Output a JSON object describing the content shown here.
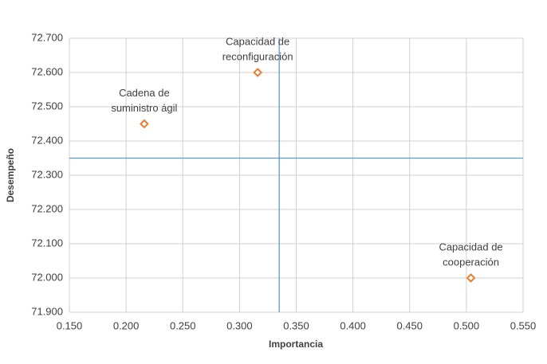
{
  "chart_data": {
    "type": "scatter",
    "x_label": "Importancia",
    "y_label": "Desempeño",
    "points": [
      {
        "label": [
          "Cadena de",
          "suministro ágil"
        ],
        "x": 0.216,
        "y": 72.45
      },
      {
        "label": [
          "Capacidad de",
          "reconfiguración"
        ],
        "x": 0.316,
        "y": 72.6
      },
      {
        "label": [
          "Capacidad de",
          "cooperación"
        ],
        "x": 0.504,
        "y": 72.0
      }
    ],
    "color": "#ed7d31",
    "marker": "diamond",
    "reference_lines": {
      "x": 0.335,
      "y": 72.35,
      "color": "#5b9bd5"
    },
    "xlim": [
      0.15,
      0.55
    ],
    "xticks": [
      {
        "value": 0.15,
        "label": "0.150"
      },
      {
        "value": 0.2,
        "label": "0.200"
      },
      {
        "value": 0.25,
        "label": "0.250"
      },
      {
        "value": 0.3,
        "label": "0.300"
      },
      {
        "value": 0.35,
        "label": "0.350"
      },
      {
        "value": 0.4,
        "label": "0.400"
      },
      {
        "value": 0.45,
        "label": "0.450"
      },
      {
        "value": 0.5,
        "label": "0.500"
      },
      {
        "value": 0.55,
        "label": "0.550"
      }
    ],
    "ylim": [
      71.9,
      72.7
    ],
    "yticks": [
      {
        "value": 71.9,
        "label": "71.900"
      },
      {
        "value": 72.0,
        "label": "72.000"
      },
      {
        "value": 72.1,
        "label": "72.100"
      },
      {
        "value": 72.2,
        "label": "72.200"
      },
      {
        "value": 72.3,
        "label": "72.300"
      },
      {
        "value": 72.4,
        "label": "72.400"
      },
      {
        "value": 72.5,
        "label": "72.500"
      },
      {
        "value": 72.6,
        "label": "72.600"
      },
      {
        "value": 72.7,
        "label": "72.700"
      }
    ],
    "grid": true
  }
}
